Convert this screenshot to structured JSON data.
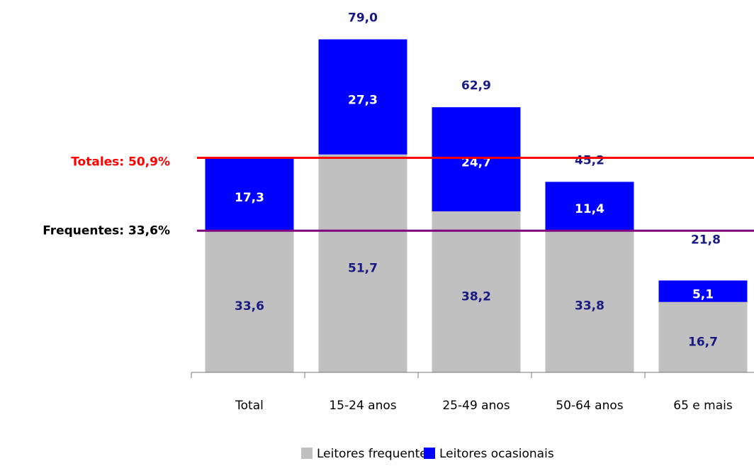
{
  "chart_data": {
    "type": "stacked_bar",
    "categories": [
      "Total",
      "15-24 anos",
      "25-49 anos",
      "50-64 anos",
      "65 e mais"
    ],
    "series": [
      {
        "name": "Leitores frequentes",
        "color": "#c0c0c0",
        "label_color": "#1a1a80",
        "values": [
          33.6,
          51.7,
          38.2,
          33.8,
          16.7
        ],
        "value_labels": [
          "33,6",
          "51,7",
          "38,2",
          "33,8",
          "16,7"
        ]
      },
      {
        "name": "Leitores ocasionais",
        "color": "#0000ff",
        "label_color": "#ffffff",
        "values": [
          17.3,
          27.3,
          24.7,
          11.4,
          5.1
        ],
        "value_labels": [
          "17,3",
          "27,3",
          "24,7",
          "11,4",
          "5,1"
        ]
      }
    ],
    "totals": [
      null,
      79.0,
      62.9,
      45.2,
      21.8
    ],
    "total_labels": [
      null,
      "79,0",
      "62,9",
      "45,2",
      "21,8"
    ],
    "reference_lines": [
      {
        "label": "Totales: 50,9%",
        "value": 50.9,
        "color": "#ff0000"
      },
      {
        "label": "Frequentes: 33,6%",
        "value": 33.6,
        "color": "#800080"
      }
    ],
    "ylim": [
      0,
      88
    ],
    "legend": "bottom"
  }
}
